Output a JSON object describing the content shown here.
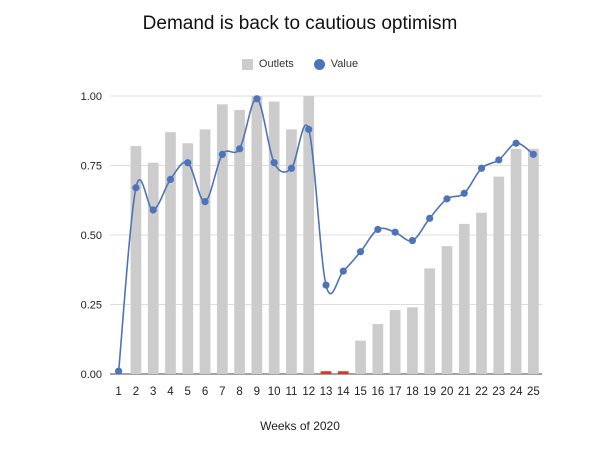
{
  "chart_data": {
    "type": "bar",
    "title": "Demand is back to cautious optimism",
    "xlabel": "Weeks of 2020",
    "ylabel": "",
    "categories": [
      "1",
      "2",
      "3",
      "4",
      "5",
      "6",
      "7",
      "8",
      "9",
      "10",
      "11",
      "12",
      "13",
      "14",
      "15",
      "16",
      "17",
      "18",
      "19",
      "20",
      "21",
      "22",
      "23",
      "24",
      "25"
    ],
    "series": [
      {
        "name": "Outlets",
        "type": "bar",
        "color": "#cccccc",
        "values": [
          0,
          0.82,
          0.76,
          0.87,
          0.83,
          0.88,
          0.97,
          0.95,
          1.0,
          0.98,
          0.88,
          1.0,
          0.01,
          0.01,
          0.12,
          0.18,
          0.23,
          0.24,
          0.38,
          0.46,
          0.54,
          0.58,
          0.71,
          0.81,
          0.81
        ]
      },
      {
        "name": "Value",
        "type": "line",
        "color": "#4d74b8",
        "values": [
          0.01,
          0.67,
          0.59,
          0.7,
          0.76,
          0.62,
          0.79,
          0.81,
          0.99,
          0.76,
          0.74,
          0.88,
          0.32,
          0.37,
          0.44,
          0.52,
          0.51,
          0.48,
          0.56,
          0.63,
          0.65,
          0.74,
          0.77,
          0.83,
          0.79
        ]
      }
    ],
    "highlight_bars": {
      "categories": [
        "13",
        "14"
      ],
      "color": "#d33a2c"
    },
    "yticks": [
      "0.00",
      "0.25",
      "0.50",
      "0.75",
      "1.00"
    ],
    "ylim": [
      0,
      1
    ],
    "grid": true,
    "legend": "top-center"
  }
}
